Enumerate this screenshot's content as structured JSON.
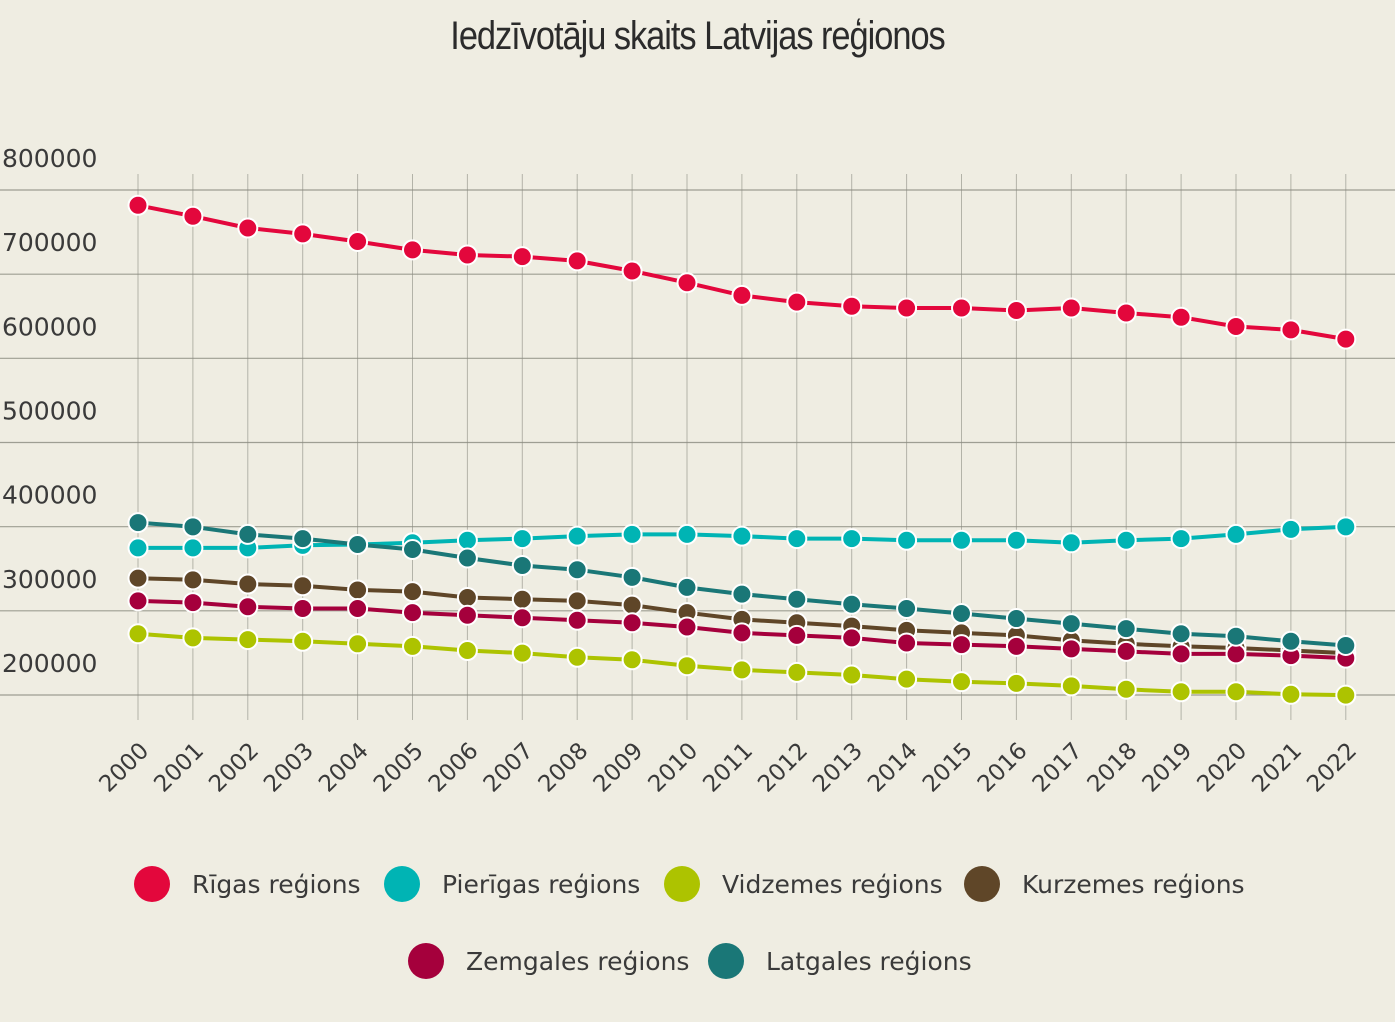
{
  "chart_data": {
    "type": "line",
    "title": "Iedzīvotāju skaits Latvijas reģionos",
    "xlabel": "",
    "ylabel": "",
    "ylim": [
      150000,
      800000
    ],
    "y_ticks": [
      200000,
      300000,
      400000,
      500000,
      600000,
      700000,
      800000
    ],
    "grid": true,
    "legend_position": "bottom",
    "x": [
      "2000",
      "2001",
      "2002",
      "2003",
      "2004",
      "2005",
      "2006",
      "2007",
      "2008",
      "2009",
      "2010",
      "2011",
      "2012",
      "2013",
      "2014",
      "2015",
      "2016",
      "2017",
      "2018",
      "2019",
      "2020",
      "2021",
      "2022"
    ],
    "series": [
      {
        "name": "Rīgas reģions",
        "color": "#e3073c",
        "values": [
          764000,
          751000,
          737000,
          730000,
          721000,
          711000,
          705000,
          703000,
          698000,
          686000,
          672000,
          657000,
          649000,
          644000,
          642000,
          642000,
          639000,
          642000,
          636000,
          631000,
          620000,
          616000,
          605000
        ]
      },
      {
        "name": "Pierīgas reģions",
        "color": "#00b4b4",
        "values": [
          357000,
          357000,
          357000,
          360000,
          361000,
          363000,
          366000,
          368000,
          371000,
          373000,
          373000,
          371000,
          368000,
          368000,
          366000,
          366000,
          366000,
          363000,
          366000,
          368000,
          373000,
          379000,
          382000
        ]
      },
      {
        "name": "Vidzemes reģions",
        "color": "#adc300",
        "values": [
          255000,
          250000,
          248000,
          246000,
          243000,
          240000,
          235000,
          232000,
          227000,
          224000,
          217000,
          212000,
          209000,
          206000,
          201000,
          198000,
          196000,
          193000,
          189000,
          186000,
          186000,
          183000,
          182000
        ]
      },
      {
        "name": "Kurzemes reģions",
        "color": "#5f4628",
        "values": [
          321000,
          319000,
          314000,
          312000,
          307000,
          305000,
          298000,
          296000,
          294000,
          289000,
          280000,
          272000,
          268000,
          264000,
          259000,
          256000,
          253000,
          247000,
          243000,
          240000,
          238000,
          235000,
          232000
        ]
      },
      {
        "name": "Zemgales reģions",
        "color": "#a5003c",
        "values": [
          294000,
          292000,
          287000,
          285000,
          285000,
          280000,
          277000,
          274000,
          271000,
          268000,
          263000,
          256000,
          253000,
          250000,
          244000,
          242000,
          240000,
          237000,
          234000,
          231000,
          231000,
          229000,
          226000
        ]
      },
      {
        "name": "Latgales reģions",
        "color": "#1a7777",
        "values": [
          387000,
          382000,
          373000,
          368000,
          361000,
          355000,
          345000,
          336000,
          331000,
          322000,
          310000,
          302000,
          296000,
          290000,
          285000,
          279000,
          273000,
          267000,
          261000,
          255000,
          252000,
          246000,
          241000
        ]
      }
    ]
  }
}
